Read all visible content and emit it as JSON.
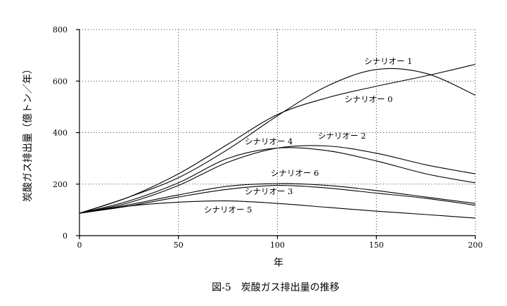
{
  "caption": "図-5　炭酸ガス排出量の推移",
  "chart_data": {
    "type": "line",
    "xlabel": "年",
    "ylabel": "炭酸ガス排出量（億トン／年）",
    "xlim": [
      0,
      200
    ],
    "ylim": [
      0,
      800
    ],
    "xticks": [
      0,
      50,
      100,
      150,
      200
    ],
    "yticks": [
      0,
      200,
      400,
      600,
      800
    ],
    "grid": true,
    "x": [
      0,
      25,
      50,
      75,
      100,
      125,
      150,
      175,
      200
    ],
    "series": [
      {
        "name": "シナリオー 0",
        "values": [
          87,
          150,
          240,
          355,
          470,
          535,
          580,
          620,
          665
        ]
      },
      {
        "name": "シナリオー 1",
        "values": [
          87,
          150,
          225,
          335,
          465,
          580,
          645,
          630,
          545
        ]
      },
      {
        "name": "シナリオー 2",
        "values": [
          87,
          128,
          195,
          285,
          340,
          348,
          320,
          275,
          240
        ]
      },
      {
        "name": "シナリオー 4",
        "values": [
          87,
          135,
          205,
          300,
          340,
          330,
          290,
          240,
          205
        ]
      },
      {
        "name": "シナリオー 6",
        "values": [
          87,
          120,
          158,
          192,
          202,
          195,
          175,
          150,
          125
        ]
      },
      {
        "name": "シナリオー 3",
        "values": [
          87,
          115,
          150,
          180,
          195,
          185,
          165,
          145,
          118
        ]
      },
      {
        "name": "シナリオー 5",
        "values": [
          87,
          115,
          130,
          135,
          125,
          110,
          95,
          82,
          68
        ]
      }
    ]
  }
}
